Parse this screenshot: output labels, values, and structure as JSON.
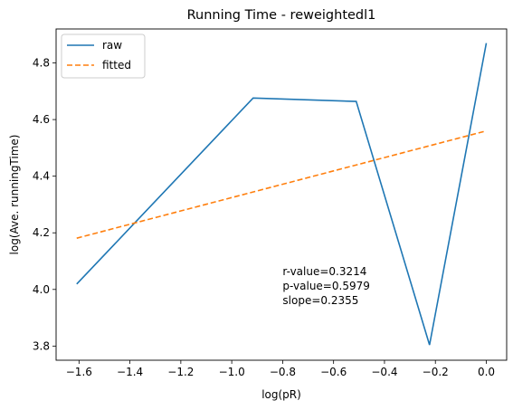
{
  "chart_data": {
    "type": "line",
    "title": "Running Time - reweightedl1",
    "xlabel": "log(pR)",
    "ylabel": "log(Ave. runningTime)",
    "xlim": [
      -1.69,
      0.08
    ],
    "ylim": [
      3.75,
      4.92
    ],
    "xticks": [
      -1.6,
      -1.4,
      -1.2,
      -1.0,
      -0.8,
      -0.6,
      -0.4,
      -0.2,
      0.0
    ],
    "xtick_labels": [
      "−1.6",
      "−1.4",
      "−1.2",
      "−1.0",
      "−0.8",
      "−0.6",
      "−0.4",
      "−0.2",
      "0.0"
    ],
    "yticks": [
      3.8,
      4.0,
      4.2,
      4.4,
      4.6,
      4.8
    ],
    "ytick_labels": [
      "3.8",
      "4.0",
      "4.2",
      "4.4",
      "4.6",
      "4.8"
    ],
    "grid": false,
    "legend_position": "top-left",
    "series": [
      {
        "name": "raw",
        "style": "solid",
        "color": "#1f77b4",
        "x": [
          -1.609,
          -0.916,
          -0.511,
          -0.223,
          0.0
        ],
        "y": [
          4.019,
          4.676,
          4.664,
          3.804,
          4.87
        ]
      },
      {
        "name": "fitted",
        "style": "dashed",
        "color": "#ff7f0e",
        "x": [
          -1.609,
          0.0
        ],
        "y": [
          4.181,
          4.56
        ]
      }
    ],
    "annotations": [
      "r-value=0.3214",
      "p-value=0.5979",
      "slope=0.2355"
    ],
    "annotation_anchor": {
      "x": -0.8,
      "y": 4.05
    }
  }
}
